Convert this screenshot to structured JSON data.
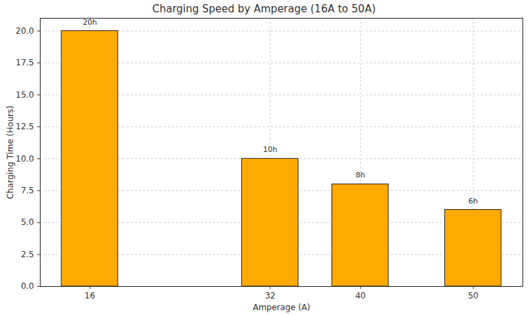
{
  "chart_data": {
    "type": "bar",
    "title": "Charging Speed by Amperage (16A to 50A)",
    "x_label": "Amperage (A)",
    "y_label": "Charging Time (Hours)",
    "x": [
      16,
      32,
      40,
      50
    ],
    "values": [
      20,
      10,
      8,
      6
    ],
    "value_labels": [
      "20h",
      "10h",
      "8h",
      "6h"
    ],
    "data_labels": true,
    "color": "#ffaa00",
    "xlim": [
      11.6,
      54.4
    ],
    "xticks": [
      16,
      32,
      40,
      50
    ],
    "ylim": [
      0,
      21
    ],
    "yticks": [
      {
        "value": 0,
        "label": "0.0"
      },
      {
        "value": 2.5,
        "label": "2.5"
      },
      {
        "value": 5,
        "label": "5.0"
      },
      {
        "value": 7.5,
        "label": "7.5"
      },
      {
        "value": 10,
        "label": "10.0"
      },
      {
        "value": 12.5,
        "label": "12.5"
      },
      {
        "value": 15,
        "label": "15.0"
      },
      {
        "value": 17.5,
        "label": "17.5"
      },
      {
        "value": 20,
        "label": "20.0"
      }
    ],
    "grid": true
  }
}
